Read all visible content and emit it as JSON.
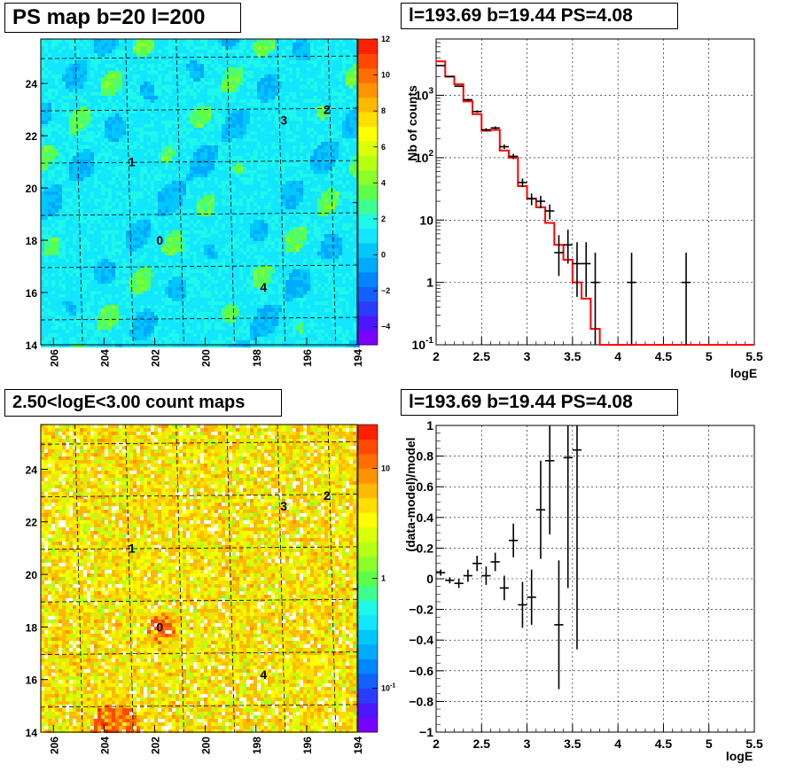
{
  "titles": {
    "ps_map": "PS map b=20 l=200",
    "spectrum": "l=193.69 b=19.44 PS=4.08",
    "count_map": "2.50<logE<3.00 count maps",
    "residual": "l=193.69 b=19.44 PS=4.08"
  },
  "chart_data": [
    {
      "type": "heatmap",
      "title": "PS map b=20 l=200",
      "x_ticks": [
        "206",
        "204",
        "202",
        "200",
        "198",
        "196",
        "194"
      ],
      "y_ticks": [
        "14",
        "16",
        "18",
        "20",
        "22",
        "24"
      ],
      "xlim": [
        206.5,
        194
      ],
      "ylim": [
        14,
        25.7
      ],
      "colorbar_ticks": [
        "12",
        "10",
        "8",
        "6",
        "4",
        "2",
        "0",
        "−2",
        "−4"
      ],
      "colorbar_range": [
        -5,
        12
      ],
      "sources": [
        {
          "label": "0",
          "l": 201.8,
          "b": 18.0
        },
        {
          "label": "1",
          "l": 202.9,
          "b": 21.0
        },
        {
          "label": "2",
          "l": 195.2,
          "b": 23.0
        },
        {
          "label": "3",
          "l": 196.9,
          "b": 22.6
        },
        {
          "label": "4",
          "l": 197.7,
          "b": 16.2
        }
      ],
      "marker": {
        "l": 193.69,
        "b": 19.44
      }
    },
    {
      "type": "line",
      "title": "l=193.69 b=19.44 PS=4.08",
      "xlabel": "logE",
      "ylabel": "Nb of counts",
      "xlim": [
        2,
        5.5
      ],
      "ylim": [
        0.1,
        8000
      ],
      "yscale": "log",
      "x_ticks": [
        "2",
        "2.5",
        "3",
        "3.5",
        "4",
        "4.5",
        "5",
        "5.5"
      ],
      "y_ticks": [
        "10^-1",
        "1",
        "10",
        "10^2",
        "10^3"
      ],
      "grid": true,
      "series": [
        {
          "kind": "data-points-with-errors",
          "x": [
            2.05,
            2.15,
            2.25,
            2.35,
            2.45,
            2.55,
            2.65,
            2.75,
            2.85,
            2.95,
            3.05,
            3.15,
            3.25,
            3.35,
            3.45,
            3.55,
            3.65,
            3.75,
            4.15,
            4.75
          ],
          "y": [
            3000,
            2000,
            1400,
            850,
            550,
            280,
            300,
            150,
            105,
            40,
            22,
            20,
            14,
            3,
            4,
            2,
            2,
            1,
            1,
            1
          ]
        },
        {
          "kind": "model-histogram",
          "color": "#ff0000",
          "x": [
            2.05,
            2.15,
            2.25,
            2.35,
            2.45,
            2.55,
            2.65,
            2.75,
            2.85,
            2.95,
            3.05,
            3.15,
            3.25,
            3.35,
            3.45,
            3.55,
            3.65,
            3.75,
            3.85,
            3.95,
            4.05,
            4.15,
            4.25,
            4.35,
            4.45,
            4.55,
            4.65,
            4.75,
            4.85,
            4.95,
            5.05,
            5.15,
            5.25,
            5.35,
            5.45
          ],
          "y": [
            3500,
            2000,
            1500,
            800,
            500,
            270,
            280,
            130,
            100,
            35,
            22,
            16,
            9,
            4,
            2.3,
            1,
            0.55,
            0.18,
            0.1,
            0.1,
            0.1,
            0.1,
            0.1,
            0.1,
            0.1,
            0.1,
            0.1,
            0.1,
            0.1,
            0.1,
            0.1,
            0.1,
            0.1,
            0.1,
            0.1
          ]
        }
      ]
    },
    {
      "type": "heatmap",
      "title": "2.50<logE<3.00 count maps",
      "x_ticks": [
        "206",
        "204",
        "202",
        "200",
        "198",
        "196",
        "194"
      ],
      "y_ticks": [
        "14",
        "16",
        "18",
        "20",
        "22",
        "24"
      ],
      "xlim": [
        206.5,
        194
      ],
      "ylim": [
        14,
        25.7
      ],
      "colorbar_ticks": [
        "10",
        "1",
        "10^-1"
      ],
      "colorbar_scale": "log",
      "sources": [
        {
          "label": "0",
          "l": 201.8,
          "b": 18.0
        },
        {
          "label": "1",
          "l": 202.9,
          "b": 21.0
        },
        {
          "label": "2",
          "l": 195.2,
          "b": 23.0
        },
        {
          "label": "3",
          "l": 196.9,
          "b": 22.6
        },
        {
          "label": "4",
          "l": 197.7,
          "b": 16.2
        }
      ],
      "marker": {
        "l": 193.69,
        "b": 19.44
      }
    },
    {
      "type": "scatter",
      "title": "l=193.69 b=19.44 PS=4.08",
      "xlabel": "logE",
      "ylabel": "(data-model)/model",
      "xlim": [
        2,
        5.5
      ],
      "ylim": [
        -1,
        1
      ],
      "x_ticks": [
        "2",
        "2.5",
        "3",
        "3.5",
        "4",
        "4.5",
        "5",
        "5.5"
      ],
      "y_ticks": [
        "−1",
        "−0.8",
        "−0.6",
        "−0.4",
        "−0.2",
        "0",
        "0.2",
        "0.4",
        "0.6",
        "0.8",
        "1"
      ],
      "grid": true,
      "series": [
        {
          "kind": "data-points-with-errors",
          "x": [
            2.05,
            2.15,
            2.25,
            2.35,
            2.45,
            2.55,
            2.65,
            2.75,
            2.85,
            2.95,
            3.05,
            3.15,
            3.25,
            3.35,
            3.45,
            3.55
          ],
          "y": [
            0.04,
            -0.01,
            -0.03,
            0.02,
            0.1,
            0.02,
            0.11,
            -0.06,
            0.25,
            -0.17,
            -0.12,
            0.45,
            0.77,
            -0.3,
            0.79,
            0.84
          ],
          "yerr": [
            0.02,
            0.02,
            0.03,
            0.04,
            0.05,
            0.06,
            0.06,
            0.08,
            0.11,
            0.15,
            0.18,
            0.32,
            0.48,
            0.42,
            0.85,
            1.3
          ]
        }
      ]
    }
  ]
}
